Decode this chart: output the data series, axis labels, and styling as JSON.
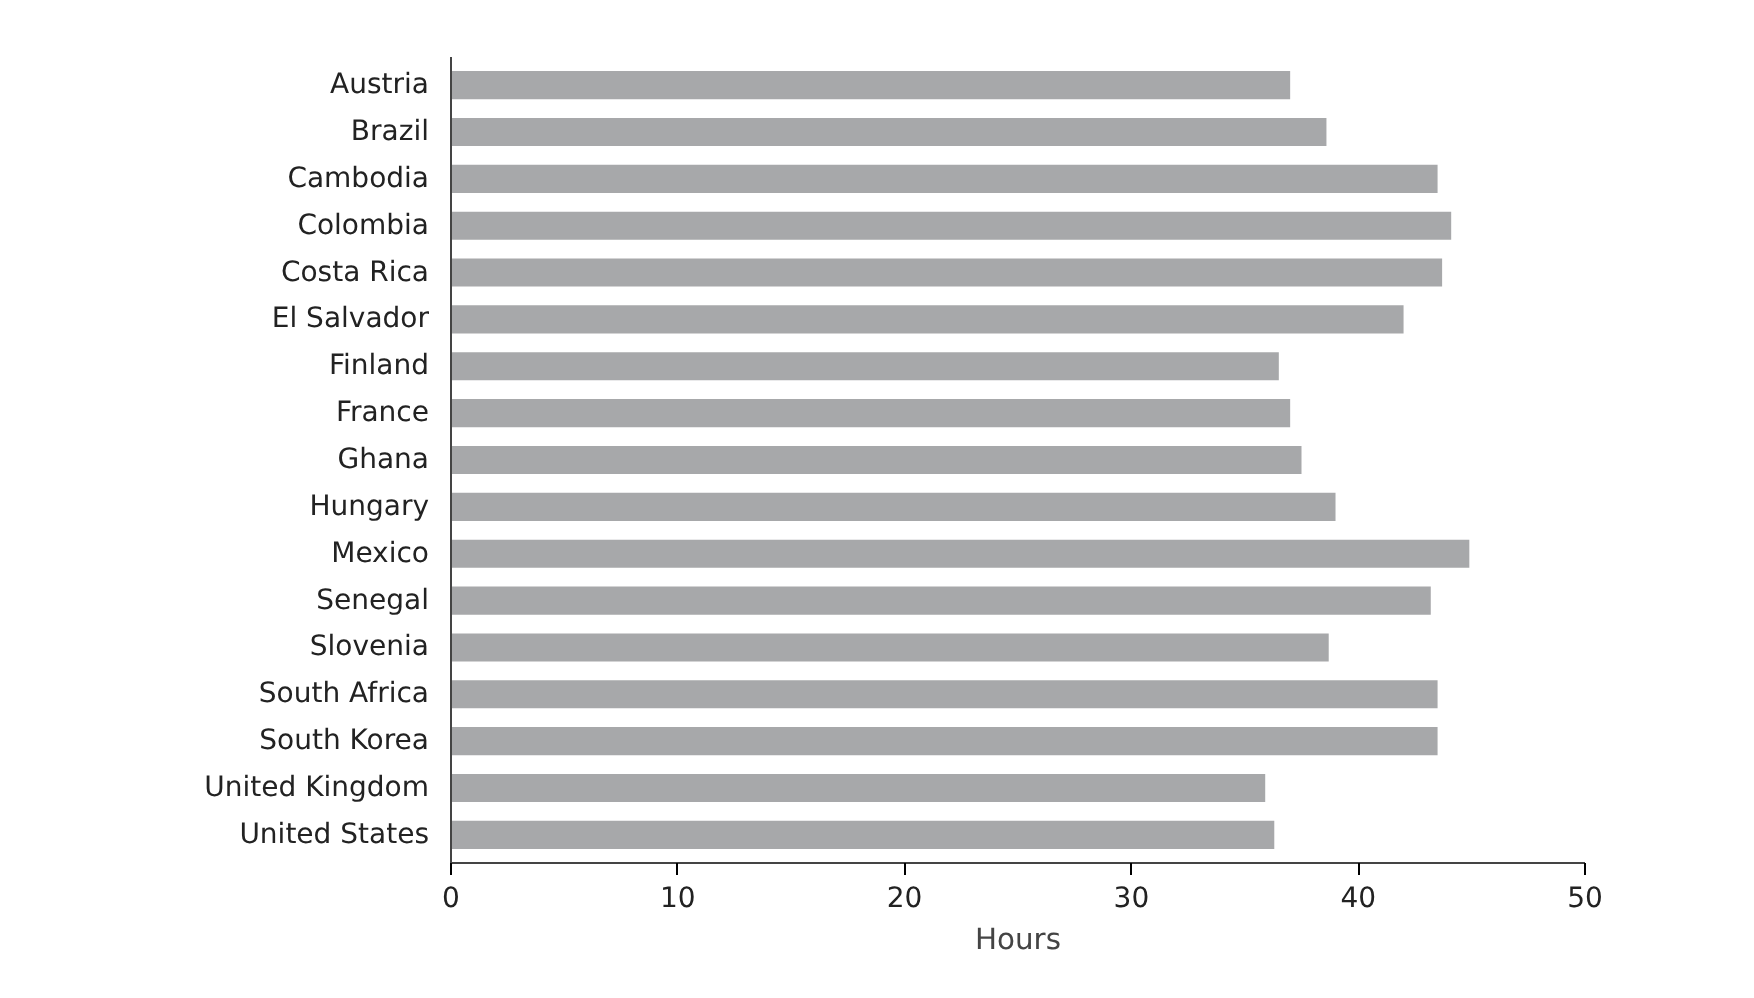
{
  "chart_data": {
    "type": "bar",
    "orientation": "horizontal",
    "xlabel": "Hours",
    "categories": [
      "Austria",
      "Brazil",
      "Cambodia",
      "Colombia",
      "Costa Rica",
      "El Salvador",
      "Finland",
      "France",
      "Ghana",
      "Hungary",
      "Mexico",
      "Senegal",
      "Slovenia",
      "South Africa",
      "South Korea",
      "United Kingdom",
      "United States"
    ],
    "values": [
      37.0,
      38.6,
      43.5,
      44.1,
      43.7,
      42.0,
      36.5,
      37.0,
      37.5,
      39.0,
      44.9,
      43.2,
      38.7,
      43.5,
      43.5,
      35.9,
      36.3
    ],
    "color": "#a7a8aa",
    "xlim": [
      0,
      50
    ],
    "xticks": [
      0,
      10,
      20,
      30,
      40,
      50
    ],
    "grid": false
  }
}
